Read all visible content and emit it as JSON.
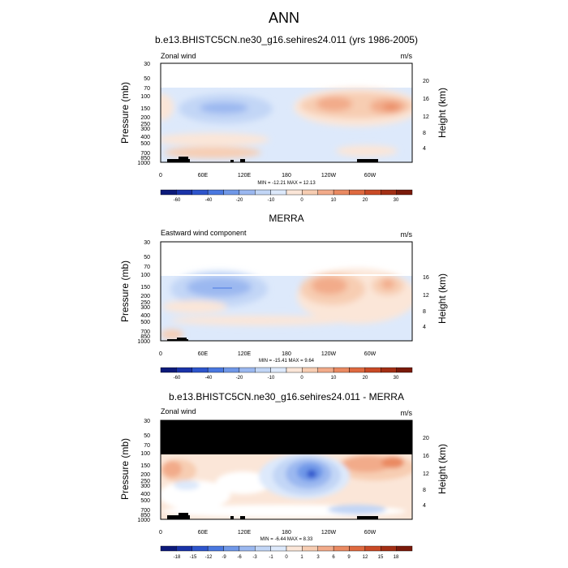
{
  "page": {
    "title": "ANN"
  },
  "chart_data": [
    {
      "type": "heatmap",
      "title": "b.e13.BHISTC5CN.ne30_g16.sehires24.011 (yrs 1986-2005)",
      "left_label": "Zonal wind",
      "units": "m/s",
      "ylabel": "Pressure (mb)",
      "y2label": "Height (km)",
      "xticks": [
        "0",
        "60E",
        "120E",
        "180",
        "120W",
        "60W"
      ],
      "yticks": [
        "30",
        "50",
        "70",
        "100",
        "150",
        "200",
        "250",
        "300",
        "400",
        "500",
        "700",
        "850",
        "1000"
      ],
      "y2ticks": [
        "20",
        "16",
        "12",
        "8",
        "4"
      ],
      "minmax": "MIN = -12.21  MAX =  12.13",
      "colorbar": {
        "labels": [
          "-60",
          "-40",
          "-20",
          "-10",
          "0",
          "10",
          "20",
          "30"
        ],
        "colors": [
          "#0c1a7a",
          "#1a33a8",
          "#2e55cc",
          "#4a78e0",
          "#7098e8",
          "#9bb8f0",
          "#c2d6f6",
          "#dde9fb",
          "#fbe6d8",
          "#f7cdb2",
          "#f2ab8a",
          "#ea8a62",
          "#df6a40",
          "#c94a26",
          "#a32f15",
          "#7a1a0a"
        ]
      }
    },
    {
      "type": "heatmap",
      "title": "MERRA",
      "left_label": "Eastward wind component",
      "units": "m/s",
      "ylabel": "Pressure (mb)",
      "y2label": "Height (km)",
      "xticks": [
        "0",
        "60E",
        "120E",
        "180",
        "120W",
        "60W"
      ],
      "yticks": [
        "30",
        "50",
        "70",
        "100",
        "150",
        "200",
        "250",
        "300",
        "400",
        "500",
        "700",
        "850",
        "1000"
      ],
      "y2ticks": [
        "16",
        "12",
        "8",
        "4"
      ],
      "minmax": "MIN = -15.41  MAX =  9.64",
      "colorbar": {
        "labels": [
          "-60",
          "-40",
          "-20",
          "-10",
          "0",
          "10",
          "20",
          "30"
        ],
        "colors": [
          "#0c1a7a",
          "#1a33a8",
          "#2e55cc",
          "#4a78e0",
          "#7098e8",
          "#9bb8f0",
          "#c2d6f6",
          "#dde9fb",
          "#fbe6d8",
          "#f7cdb2",
          "#f2ab8a",
          "#ea8a62",
          "#df6a40",
          "#c94a26",
          "#a32f15",
          "#7a1a0a"
        ]
      }
    },
    {
      "type": "heatmap",
      "title": "b.e13.BHISTC5CN.ne30_g16.sehires24.011 - MERRA",
      "left_label": "Zonal wind",
      "units": "m/s",
      "ylabel": "Pressure (mb)",
      "y2label": "Height (km)",
      "xticks": [
        "0",
        "60E",
        "120E",
        "180",
        "120W",
        "60W"
      ],
      "yticks": [
        "30",
        "50",
        "70",
        "100",
        "150",
        "200",
        "250",
        "300",
        "400",
        "500",
        "700",
        "850",
        "1000"
      ],
      "y2ticks": [
        "20",
        "16",
        "12",
        "8",
        "4"
      ],
      "minmax": "MIN = -6.44  MAX =  8.33",
      "colorbar": {
        "labels": [
          "-18",
          "-15",
          "-12",
          "-9",
          "-6",
          "-3",
          "-1",
          "0",
          "1",
          "3",
          "6",
          "9",
          "12",
          "15",
          "18"
        ],
        "colors": [
          "#0c1a7a",
          "#1a33a8",
          "#2e55cc",
          "#4a78e0",
          "#7098e8",
          "#9bb8f0",
          "#c2d6f6",
          "#dde9fb",
          "#fbe6d8",
          "#f7cdb2",
          "#f2ab8a",
          "#ea8a62",
          "#df6a40",
          "#c94a26",
          "#a32f15",
          "#7a1a0a"
        ]
      }
    }
  ]
}
